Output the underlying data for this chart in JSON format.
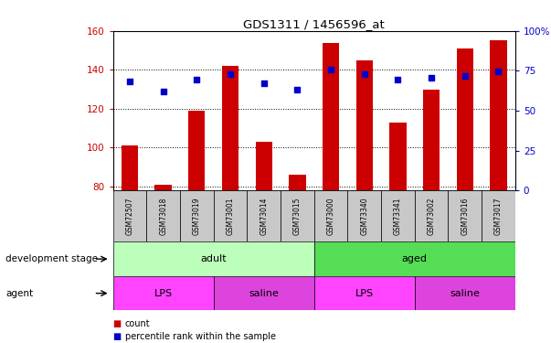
{
  "title": "GDS1311 / 1456596_at",
  "samples": [
    "GSM72507",
    "GSM73018",
    "GSM73019",
    "GSM73001",
    "GSM73014",
    "GSM73015",
    "GSM73000",
    "GSM73340",
    "GSM73341",
    "GSM73002",
    "GSM73016",
    "GSM73017"
  ],
  "bar_values": [
    101,
    81,
    119,
    142,
    103,
    86,
    154,
    145,
    113,
    130,
    151,
    155
  ],
  "dot_values": [
    134,
    129,
    135,
    138,
    133,
    130,
    140,
    138,
    135,
    136,
    137,
    139
  ],
  "ylim_left": [
    78,
    160
  ],
  "ylim_right": [
    0,
    100
  ],
  "yticks_left": [
    80,
    100,
    120,
    140,
    160
  ],
  "yticks_right": [
    0,
    25,
    50,
    75,
    100
  ],
  "bar_color": "#CC0000",
  "dot_color": "#0000CC",
  "adult_color": "#BBFFBB",
  "aged_color": "#55DD55",
  "lps_color": "#FF44FF",
  "saline_color": "#DD44DD",
  "sample_bg": "#C8C8C8",
  "development_stage_groups": [
    {
      "label": "adult",
      "start": 0,
      "end": 5,
      "color": "#BBFFBB"
    },
    {
      "label": "aged",
      "start": 6,
      "end": 11,
      "color": "#55DD55"
    }
  ],
  "agent_groups": [
    {
      "label": "LPS",
      "start": 0,
      "end": 2,
      "color": "#FF44FF"
    },
    {
      "label": "saline",
      "start": 3,
      "end": 5,
      "color": "#DD44DD"
    },
    {
      "label": "LPS",
      "start": 6,
      "end": 8,
      "color": "#FF44FF"
    },
    {
      "label": "saline",
      "start": 9,
      "end": 11,
      "color": "#DD44DD"
    }
  ],
  "legend_items": [
    "count",
    "percentile rank within the sample"
  ],
  "legend_colors": [
    "#CC0000",
    "#0000CC"
  ]
}
